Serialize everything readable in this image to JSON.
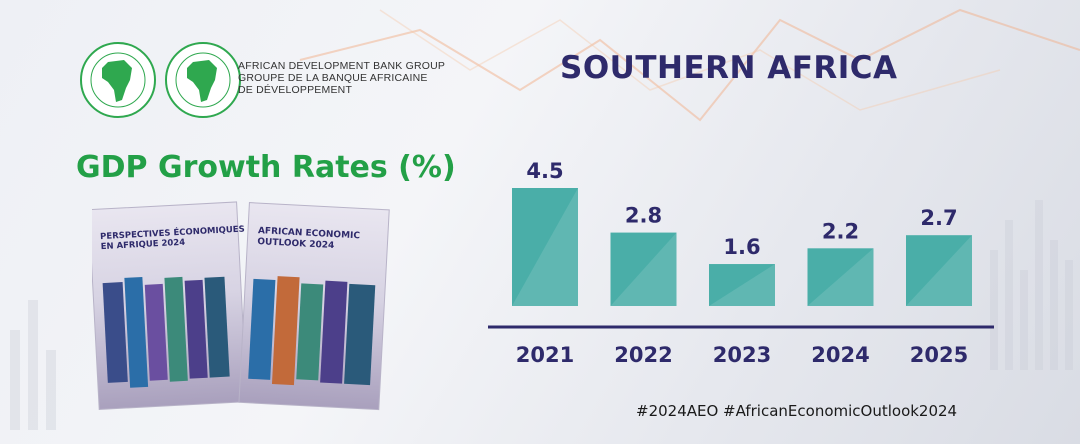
{
  "org": {
    "name_en": "AFRICAN DEVELOPMENT BANK GROUP",
    "name_fr_line1": "GROUPE DE LA BANQUE AFRICAINE",
    "name_fr_line2": "DE DÉVELOPPEMENT",
    "seal1_ring_text": "BANQUE AFRICAINE DE DÉVELOPPEMENT · AFRICAN DEVELOPMENT BANK",
    "seal2_ring_text": "AFRICAN DEVELOPMENT FUND · FONDS AFRICAIN DE DÉVELOPPEMENT",
    "brand_green": "#2fa84f"
  },
  "region_title": "SOUTHERN AFRICA",
  "gdp_title": "GDP Growth Rates (%)",
  "books": {
    "fr_title": "PERSPECTIVES ÉCONOMIQUES EN AFRIQUE 2024",
    "en_title": "AFRICAN ECONOMIC OUTLOOK 2024"
  },
  "chart_data": {
    "type": "bar",
    "categories": [
      "2021",
      "2022",
      "2023",
      "2024",
      "2025"
    ],
    "values": [
      4.5,
      2.8,
      1.6,
      2.2,
      2.7
    ],
    "value_labels": [
      "4.5",
      "2.8",
      "1.6",
      "2.2",
      "2.7"
    ],
    "title": "GDP Growth Rates (%)",
    "xlabel": "",
    "ylabel": "",
    "ylim": [
      0,
      4.5
    ],
    "grid": false,
    "bar_color": "#4aaea8",
    "label_color": "#2e2a6b"
  },
  "hashtags": "#2024AEO #AfricanEconomicOutlook2024"
}
